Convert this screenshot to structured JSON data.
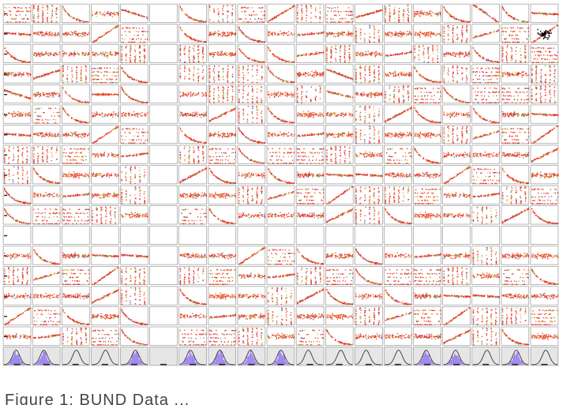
{
  "figure": {
    "caption": "Figure 1: BUND Data ..."
  },
  "chart_data": {
    "type": "scatter",
    "matrix_rows": 18,
    "matrix_cols": 19,
    "diagonal_panel_type": "histogram with density curve (bottom row)",
    "colors": {
      "primary_points": "#e8392a",
      "secondary_points": "#f0a030",
      "tertiary_points": "#7ed957",
      "quaternary_points": "#3b5bdb",
      "histogram_fill": "#9a7ff0",
      "density_curve": "#222222",
      "panel_border": "#888888",
      "histogram_bg": "#e6e6e6"
    },
    "empty_columns": [
      5
    ],
    "empty_rows": [
      11
    ],
    "special_panel": {
      "row": 1,
      "col": 18,
      "marker_color": "#000000"
    },
    "histogram_row_types": [
      "hist",
      "hist",
      "curve",
      "curve",
      "hist",
      "curve",
      "hist",
      "hist",
      "hist",
      "hist",
      "curve",
      "curve",
      "curve",
      "curve",
      "hist",
      "hist",
      "curve",
      "hist",
      "curve"
    ]
  }
}
